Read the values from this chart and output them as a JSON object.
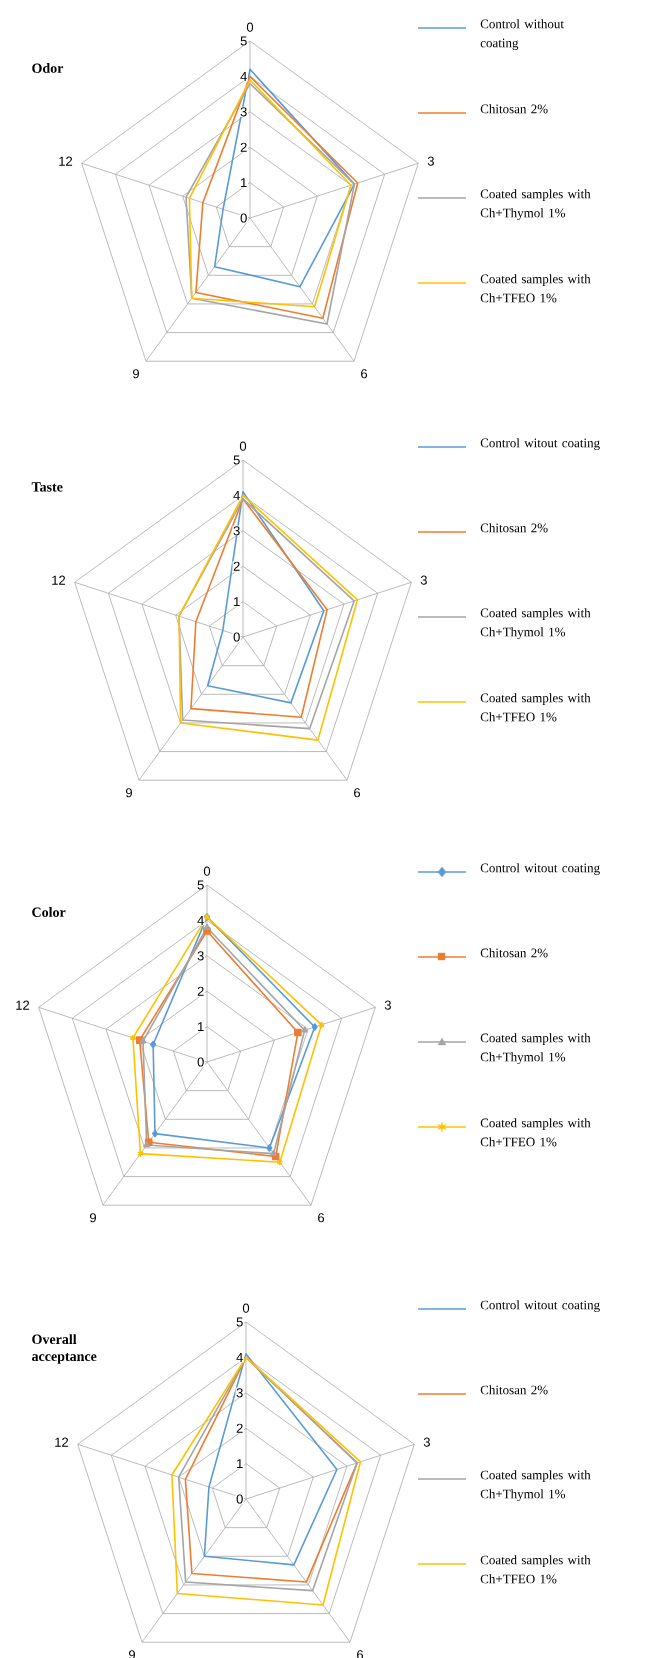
{
  "chart_data": [
    {
      "type": "radar",
      "title": "Odor",
      "categories": [
        "0",
        "3",
        "6",
        "9",
        "12"
      ],
      "ylim": [
        0,
        5
      ],
      "yticks": [
        0,
        1,
        2,
        3,
        4,
        5
      ],
      "grid": true,
      "legend": "right",
      "series": [
        {
          "name": "Control without coating",
          "color": "#5b9bd5",
          "values": [
            4.2,
            3.1,
            2.4,
            1.7,
            0.8
          ]
        },
        {
          "name": "Chitosan 2%",
          "color": "#ed7d31",
          "values": [
            4.0,
            3.2,
            3.5,
            2.6,
            1.4
          ]
        },
        {
          "name": "Coated samples with Ch+Thymol 1%",
          "color": "#a5a5a5",
          "values": [
            3.8,
            3.1,
            3.7,
            2.8,
            1.9
          ]
        },
        {
          "name": "Coated samples with Ch+TFEO 1%",
          "color": "#ffc000",
          "values": [
            3.9,
            3.0,
            3.1,
            2.8,
            1.8
          ]
        }
      ]
    },
    {
      "type": "radar",
      "title": "Taste",
      "categories": [
        "0",
        "3",
        "6",
        "9",
        "12"
      ],
      "ylim": [
        0,
        5
      ],
      "yticks": [
        0,
        1,
        2,
        3,
        4,
        5
      ],
      "grid": true,
      "legend": "right",
      "series": [
        {
          "name": "Control witout coating",
          "color": "#5b9bd5",
          "values": [
            4.1,
            2.4,
            2.3,
            1.7,
            0.6
          ]
        },
        {
          "name": "Chitosan 2%",
          "color": "#ed7d31",
          "values": [
            3.9,
            2.5,
            2.8,
            2.5,
            1.4
          ]
        },
        {
          "name": "Coated samples with Ch+Thymol 1%",
          "color": "#a5a5a5",
          "values": [
            3.9,
            3.3,
            3.2,
            2.9,
            1.9
          ]
        },
        {
          "name": "Coated samples with Ch+TFEO 1%",
          "color": "#ffc000",
          "values": [
            4.0,
            3.4,
            3.6,
            3.0,
            1.9
          ]
        }
      ]
    },
    {
      "type": "radar",
      "title": "Color",
      "categories": [
        "0",
        "3",
        "6",
        "9",
        "12"
      ],
      "ylim": [
        0,
        5
      ],
      "yticks": [
        0,
        1,
        2,
        3,
        4,
        5
      ],
      "grid": true,
      "legend": "right",
      "series": [
        {
          "name": "Control witout coating",
          "color": "#5b9bd5",
          "marker": "diamond",
          "values": [
            4.1,
            3.2,
            3.0,
            2.5,
            1.6
          ]
        },
        {
          "name": "Chitosan 2%",
          "color": "#ed7d31",
          "marker": "square",
          "values": [
            3.7,
            2.7,
            3.3,
            2.8,
            2.0
          ]
        },
        {
          "name": "Coated samples with Ch+Thymol 1%",
          "color": "#a5a5a5",
          "marker": "triangle",
          "values": [
            3.8,
            2.9,
            3.2,
            2.9,
            1.9
          ]
        },
        {
          "name": "Coated samples with Ch+TFEO 1%",
          "color": "#ffc000",
          "marker": "star",
          "values": [
            4.1,
            3.4,
            3.5,
            3.2,
            2.2
          ]
        }
      ]
    },
    {
      "type": "radar",
      "title": "Overall acceptance",
      "categories": [
        "0",
        "3",
        "6",
        "9",
        "12"
      ],
      "ylim": [
        0,
        5
      ],
      "yticks": [
        0,
        1,
        2,
        3,
        4,
        5
      ],
      "grid": true,
      "legend": "right",
      "series": [
        {
          "name": "Control witout coating",
          "color": "#5b9bd5",
          "values": [
            4.1,
            2.7,
            2.3,
            2.0,
            1.1
          ]
        },
        {
          "name": "Chitosan 2%",
          "color": "#ed7d31",
          "values": [
            4.0,
            3.3,
            2.9,
            2.6,
            1.8
          ]
        },
        {
          "name": "Coated samples with Ch+Thymol 1%",
          "color": "#a5a5a5",
          "values": [
            4.0,
            3.3,
            3.2,
            2.9,
            2.0
          ]
        },
        {
          "name": "Coated samples with Ch+TFEO 1%",
          "color": "#ffc000",
          "values": [
            4.0,
            3.4,
            3.7,
            3.3,
            2.2
          ]
        }
      ]
    }
  ]
}
